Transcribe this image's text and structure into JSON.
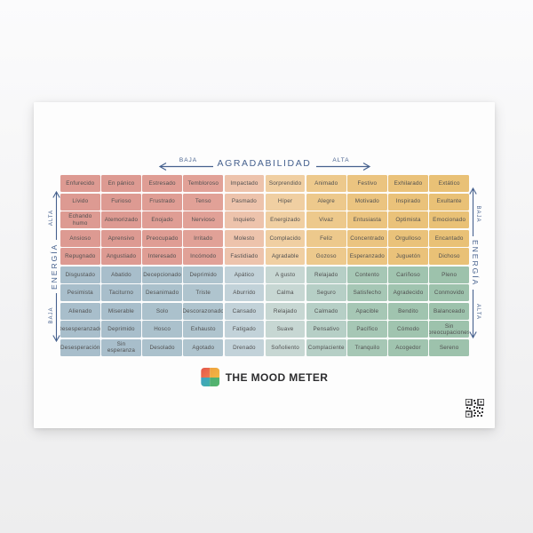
{
  "accent_color": "#46618e",
  "poster": {
    "top_axis": {
      "label": "AGRADABILIDAD",
      "low": "BAJA",
      "high": "ALTA"
    },
    "left_axis": {
      "label": "ENERGÍA",
      "low": "BAJA",
      "high": "ALTA"
    },
    "right_axis": {
      "label": "ENERGÍA",
      "low": "BAJA",
      "high": "ALTA"
    },
    "grid": {
      "rows": [
        [
          "Enfurecido",
          "En pánico",
          "Estresado",
          "Tembloroso",
          "Impactado",
          "Sorprendido",
          "Animado",
          "Festivo",
          "Exhilarado",
          "Extático"
        ],
        [
          "Lívido",
          "Furioso",
          "Frustrado",
          "Tenso",
          "Pasmado",
          "Híper",
          "Alegre",
          "Motivado",
          "Inspirado",
          "Exultante"
        ],
        [
          "Echando humo",
          "Atemorizado",
          "Enojado",
          "Nervioso",
          "Inquieto",
          "Energizado",
          "Vivaz",
          "Entusiasta",
          "Optimista",
          "Emocionado"
        ],
        [
          "Ansioso",
          "Aprensivo",
          "Preocupado",
          "Irritado",
          "Molesto",
          "Complacido",
          "Feliz",
          "Concentrado",
          "Orgulloso",
          "Encantado"
        ],
        [
          "Repugnado",
          "Angustiado",
          "Interesado",
          "Incómodo",
          "Fastidiado",
          "Agradable",
          "Gozoso",
          "Esperanzado",
          "Juguetón",
          "Dichoso"
        ],
        [
          "Disgustado",
          "Abatido",
          "Decepcionado",
          "Deprimido",
          "Apático",
          "A gusto",
          "Relajado",
          "Contento",
          "Cariñoso",
          "Pleno"
        ],
        [
          "Pesimista",
          "Taciturno",
          "Desanimado",
          "Triste",
          "Aburrido",
          "Calma",
          "Seguro",
          "Satisfecho",
          "Agradecido",
          "Conmovido"
        ],
        [
          "Alienado",
          "Miserable",
          "Solo",
          "Descorazonado",
          "Cansado",
          "Relajado",
          "Calmado",
          "Apacible",
          "Bendito",
          "Balanceado"
        ],
        [
          "Desesperanzado",
          "Deprimido",
          "Hosco",
          "Exhausto",
          "Fatigado",
          "Suave",
          "Pensativo",
          "Pacífico",
          "Cómodo",
          "Sin preocupaciones"
        ],
        [
          "Desesperación",
          "Sin esperanza",
          "Desolado",
          "Agotado",
          "Drenado",
          "Soñoliento",
          "Complaciente",
          "Tranquilo",
          "Acogedor",
          "Sereno"
        ]
      ],
      "top_colors": [
        "#dd9a92",
        "#dd9a92",
        "#df9d94",
        "#e1a197",
        "#edc3ac",
        "#f0cfa2",
        "#edc98c",
        "#ebc480",
        "#eac27a",
        "#e9c176"
      ],
      "bottom_colors": [
        "#a8becb",
        "#a8becb",
        "#abc1cc",
        "#afc4ce",
        "#c2d2d9",
        "#c7d7d3",
        "#b6cfc6",
        "#a6c7b5",
        "#a0c4af",
        "#9dc2ac"
      ],
      "text_color": "#4f4f4f"
    },
    "logo": {
      "text": "THE MOOD METER",
      "colors": {
        "tl": "#e4574b",
        "tr": "#f2b844",
        "bl": "#41a0c3",
        "br": "#55b66c"
      }
    }
  }
}
